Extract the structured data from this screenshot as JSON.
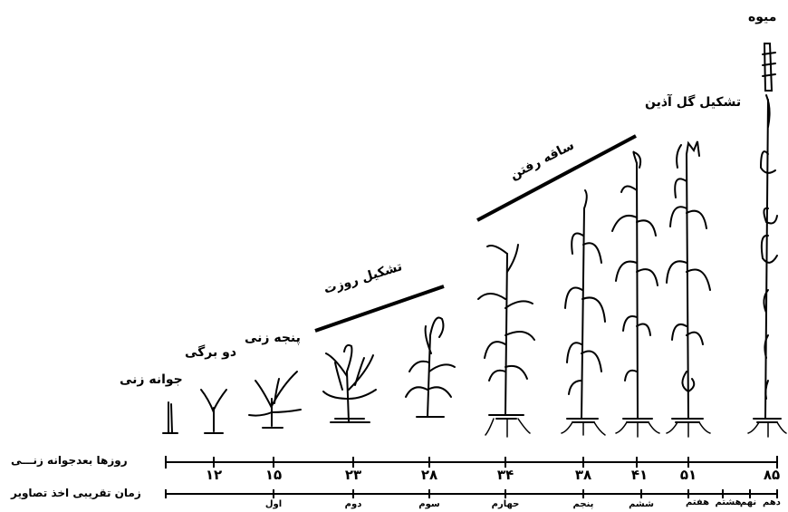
{
  "stages": {
    "emergence": "جوانه زنی",
    "two_leaf": "دو برگی",
    "tillering": "پنجه زنی",
    "rosette": "تشکیل روزت",
    "stem_elongation": "ساقه رفتن",
    "flowering": "تشکیل گل آذین",
    "fruit": "میوه"
  },
  "axis": {
    "days_label": "روزها بعدجوانه زنـــی",
    "time_label": "زمان تقریبی اخذ تصاویر",
    "days": [
      "۱۲",
      "۱۵",
      "۲۳",
      "۲۸",
      "۳۴",
      "۳۸",
      "۴۱",
      "۵۱",
      "۸۵"
    ],
    "ordinals": [
      "اول",
      "دوم",
      "سوم",
      "حهارم",
      "پنجم",
      "ششم",
      "هفتم",
      "هشتم",
      "نهم",
      "دهم"
    ]
  },
  "colors": {
    "ink": "#000000",
    "background": "#ffffff"
  }
}
